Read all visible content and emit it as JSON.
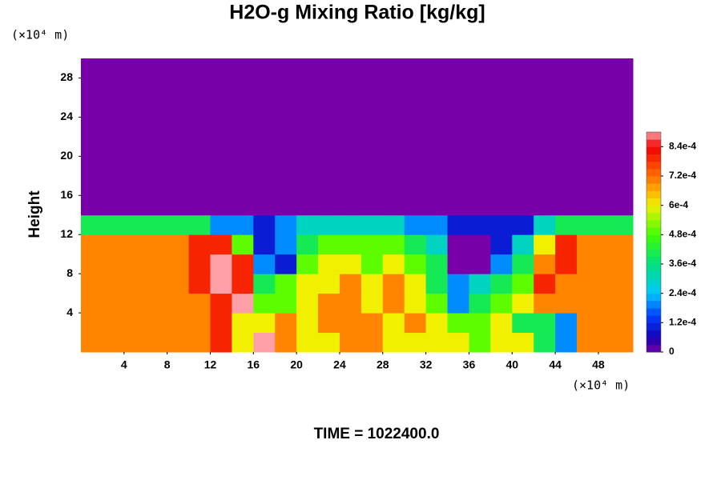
{
  "chart_data": {
    "type": "heatmap",
    "title": "H2O-g Mixing Ratio [kg/kg]",
    "ylabel": "Height",
    "x_unit": "(×10⁴ m)",
    "y_unit": "(×10⁴ m)",
    "footer": "TIME = 1022400.0",
    "xbins": [
      0,
      2,
      4,
      6,
      8,
      10,
      12,
      14,
      16,
      18,
      20,
      22,
      24,
      26,
      28,
      30,
      32,
      34,
      36,
      38,
      40,
      42,
      44,
      46,
      48,
      50,
      51.2
    ],
    "ybins": [
      0,
      2,
      4,
      6,
      8,
      10,
      12,
      14,
      16,
      18,
      20,
      22,
      24,
      26,
      28,
      30
    ],
    "xlim": [
      0,
      51.2
    ],
    "ylim": [
      0,
      30
    ],
    "xticks": [
      4,
      8,
      12,
      16,
      20,
      24,
      28,
      32,
      36,
      40,
      44,
      48
    ],
    "yticks": [
      4,
      8,
      12,
      16,
      20,
      24,
      28
    ],
    "values": [
      [
        0.0007,
        0.0007,
        0.0007,
        0.0007,
        0.0007,
        0.0007,
        0.0008,
        0.0006,
        0.0009,
        0.0007,
        0.0006,
        0.0006,
        0.0007,
        0.0007,
        0.0006,
        0.0006,
        0.0006,
        0.0006,
        0.0005,
        0.0006,
        0.0006,
        0.0004,
        0.0002,
        0.0007,
        0.0007,
        0.0007
      ],
      [
        0.0007,
        0.0007,
        0.0007,
        0.0007,
        0.0007,
        0.0007,
        0.0008,
        0.0006,
        0.0006,
        0.0007,
        0.0006,
        0.0007,
        0.0007,
        0.0007,
        0.0006,
        0.0007,
        0.0006,
        0.0005,
        0.0005,
        0.0006,
        0.0004,
        0.0004,
        0.0002,
        0.0007,
        0.0007,
        0.0007
      ],
      [
        0.0007,
        0.0007,
        0.0007,
        0.0007,
        0.0007,
        0.0007,
        0.0008,
        0.0009,
        0.0005,
        0.0005,
        0.0006,
        0.0007,
        0.0007,
        0.0006,
        0.0007,
        0.0006,
        0.0005,
        0.0002,
        0.0004,
        0.0005,
        0.0006,
        0.0007,
        0.0007,
        0.0007,
        0.0007,
        0.0007
      ],
      [
        0.0007,
        0.0007,
        0.0007,
        0.0007,
        0.0007,
        0.0008,
        0.0009,
        0.0008,
        0.0004,
        0.0005,
        0.0006,
        0.0006,
        0.0007,
        0.0006,
        0.0007,
        0.0006,
        0.0004,
        0.0002,
        0.0003,
        0.0004,
        0.0005,
        0.0008,
        0.0007,
        0.0007,
        0.0007,
        0.0007
      ],
      [
        0.0007,
        0.0007,
        0.0007,
        0.0007,
        0.0007,
        0.0008,
        0.0009,
        0.0008,
        0.0002,
        0.0001,
        0.0005,
        0.0006,
        0.0006,
        0.0005,
        0.0006,
        0.0005,
        0.0004,
        0,
        0,
        0.0002,
        0.0004,
        0.0007,
        0.0008,
        0.0007,
        0.0007,
        0.0007
      ],
      [
        0.0007,
        0.0007,
        0.0007,
        0.0007,
        0.0007,
        0.0008,
        0.0008,
        0.0005,
        0.0001,
        0.0002,
        0.0004,
        0.0005,
        0.0005,
        0.0005,
        0.0005,
        0.0004,
        0.0003,
        0,
        0,
        0.0001,
        0.0003,
        0.0006,
        0.0008,
        0.0007,
        0.0007,
        0.0007
      ],
      [
        0.0004,
        0.0004,
        0.0004,
        0.0004,
        0.0004,
        0.0004,
        0.0002,
        0.0002,
        0.0001,
        0.0002,
        0.0003,
        0.0003,
        0.0003,
        0.0003,
        0.0003,
        0.0002,
        0.0002,
        0.0001,
        0.0001,
        0.0001,
        0.0001,
        0.0003,
        0.0004,
        0.0004,
        0.0004,
        0.0004
      ],
      [
        0,
        0,
        0,
        0,
        0,
        0,
        0,
        0,
        0,
        0,
        0,
        0,
        0,
        0,
        0,
        0,
        0,
        0,
        0,
        0,
        0,
        0,
        0,
        0,
        0,
        0
      ],
      [
        0,
        0,
        0,
        0,
        0,
        0,
        0,
        0,
        0,
        0,
        0,
        0,
        0,
        0,
        0,
        0,
        0,
        0,
        0,
        0,
        0,
        0,
        0,
        0,
        0,
        0
      ],
      [
        0,
        0,
        0,
        0,
        0,
        0,
        0,
        0,
        0,
        0,
        0,
        0,
        0,
        0,
        0,
        0,
        0,
        0,
        0,
        0,
        0,
        0,
        0,
        0,
        0,
        0
      ],
      [
        0,
        0,
        0,
        0,
        0,
        0,
        0,
        0,
        0,
        0,
        0,
        0,
        0,
        0,
        0,
        0,
        0,
        0,
        0,
        0,
        0,
        0,
        0,
        0,
        0,
        0
      ],
      [
        0,
        0,
        0,
        0,
        0,
        0,
        0,
        0,
        0,
        0,
        0,
        0,
        0,
        0,
        0,
        0,
        0,
        0,
        0,
        0,
        0,
        0,
        0,
        0,
        0,
        0
      ],
      [
        0,
        0,
        0,
        0,
        0,
        0,
        0,
        0,
        0,
        0,
        0,
        0,
        0,
        0,
        0,
        0,
        0,
        0,
        0,
        0,
        0,
        0,
        0,
        0,
        0,
        0
      ],
      [
        0,
        0,
        0,
        0,
        0,
        0,
        0,
        0,
        0,
        0,
        0,
        0,
        0,
        0,
        0,
        0,
        0,
        0,
        0,
        0,
        0,
        0,
        0,
        0,
        0,
        0
      ],
      [
        0,
        0,
        0,
        0,
        0,
        0,
        0,
        0,
        0,
        0,
        0,
        0,
        0,
        0,
        0,
        0,
        0,
        0,
        0,
        0,
        0,
        0,
        0,
        0,
        0,
        0
      ]
    ],
    "colorbar": {
      "lim": [
        0,
        0.0009
      ],
      "ticks": [
        0,
        {
          "value": 0.00012,
          "label": "1.2e-4"
        },
        {
          "value": 0.00024,
          "label": "2.4e-4"
        },
        {
          "value": 0.00036,
          "label": "3.6e-4"
        },
        {
          "value": 0.00048,
          "label": "4.8e-4"
        },
        {
          "value": 0.0006,
          "label": "6e-4"
        },
        {
          "value": 0.00072,
          "label": "7.2e-4"
        },
        {
          "value": 0.00084,
          "label": "8.4e-4"
        }
      ],
      "colorscale": [
        [
          0,
          "#7800a8"
        ],
        [
          6e-05,
          "#1400b4"
        ],
        [
          0.00015,
          "#0040ff"
        ],
        [
          0.00024,
          "#00c8ff"
        ],
        [
          0.00036,
          "#00e080"
        ],
        [
          0.00048,
          "#40ff00"
        ],
        [
          0.0006,
          "#f0f000"
        ],
        [
          0.00066,
          "#ffb000"
        ],
        [
          0.00075,
          "#ff5000"
        ],
        [
          0.00084,
          "#f00000"
        ],
        [
          0.0009,
          "#ffa0a8"
        ]
      ]
    }
  }
}
